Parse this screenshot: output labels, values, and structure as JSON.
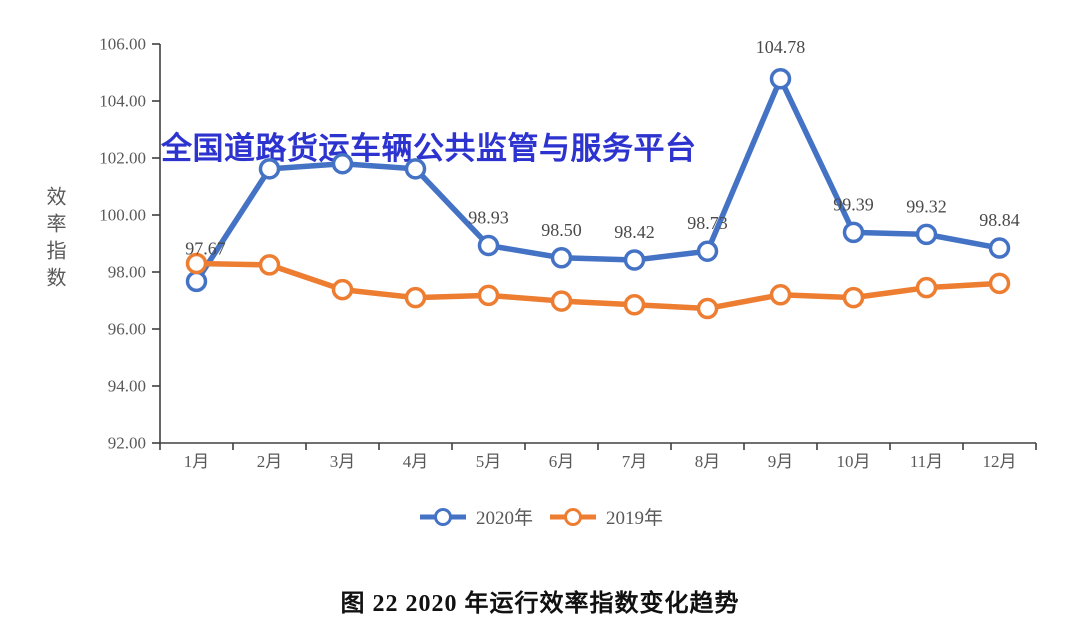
{
  "watermark": "全国道路货运车辆公共监管与服务平台",
  "caption": "图 22 2020 年运行效率指数变化趋势",
  "colors": {
    "series_2020": "#4472c4",
    "series_2019": "#ed7d31",
    "watermark_blue": "#2d33cf",
    "axis": "#404040",
    "tick_label": "#595959",
    "data_label": "#4a4a4a"
  },
  "chart_data": {
    "type": "line",
    "title": "",
    "xlabel": "",
    "ylabel": "效率指数",
    "ylim": [
      92,
      106
    ],
    "ytick_step": 2,
    "ytick_labels": [
      "92.00",
      "94.00",
      "96.00",
      "98.00",
      "100.00",
      "102.00",
      "104.00",
      "106.00"
    ],
    "grid": false,
    "legend_position": "bottom",
    "categories": [
      "1月",
      "2月",
      "3月",
      "4月",
      "5月",
      "6月",
      "7月",
      "8月",
      "9月",
      "10月",
      "11月",
      "12月"
    ],
    "series": [
      {
        "name": "2020年",
        "color": "#4472c4",
        "values": [
          97.67,
          101.62,
          101.8,
          101.62,
          98.93,
          98.5,
          98.42,
          98.73,
          104.78,
          99.39,
          99.32,
          98.84
        ],
        "labels": [
          "97.67",
          "",
          "",
          "",
          "98.93",
          "98.50",
          "98.42",
          "98.73",
          "104.78",
          "99.39",
          "99.32",
          "98.84"
        ]
      },
      {
        "name": "2019年",
        "color": "#ed7d31",
        "values": [
          98.3,
          98.25,
          97.38,
          97.1,
          97.18,
          96.98,
          96.85,
          96.72,
          97.2,
          97.1,
          97.45,
          97.6
        ],
        "labels": [
          "",
          "",
          "",
          "",
          "",
          "",
          "",
          "",
          "",
          "",
          "",
          ""
        ]
      }
    ]
  }
}
